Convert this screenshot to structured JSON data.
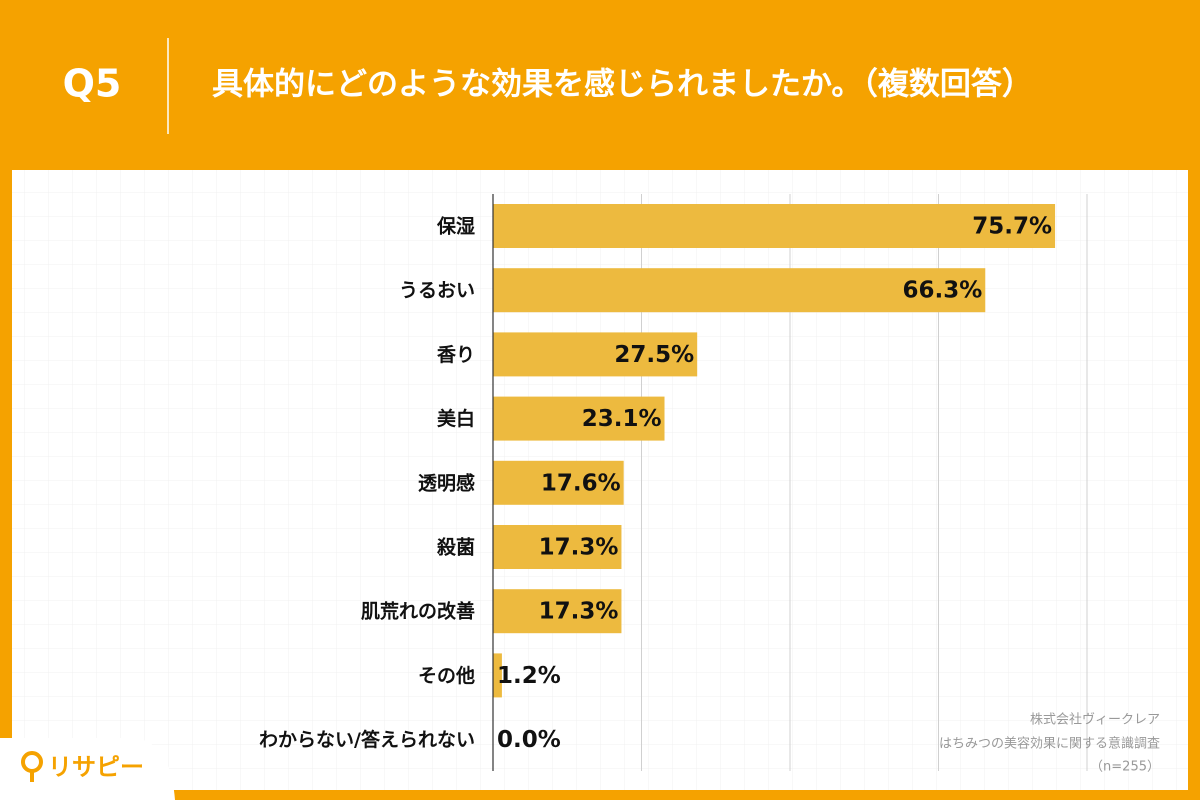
{
  "header": {
    "question": "Q5",
    "title": "具体的にどのような効果を感じられましたか。（複数回答）"
  },
  "chart_data": {
    "type": "bar",
    "orientation": "horizontal",
    "categories": [
      "保湿",
      "うるおい",
      "香り",
      "美白",
      "透明感",
      "殺菌",
      "肌荒れの改善",
      "その他",
      "わからない/答えられない"
    ],
    "values": [
      75.7,
      66.3,
      27.5,
      23.1,
      17.6,
      17.3,
      17.3,
      1.2,
      0.0
    ],
    "value_labels": [
      "75.7%",
      "66.3%",
      "27.5%",
      "23.1%",
      "17.6%",
      "17.3%",
      "17.3%",
      "1.2%",
      "0.0%"
    ],
    "color": "#edba3f",
    "xlim": [
      0,
      80
    ],
    "xticks": [
      0,
      20,
      40,
      60,
      80
    ],
    "grid": true
  },
  "source": {
    "company": "株式会社ヴィークレア",
    "survey": "はちみつの美容効果に関する意識調査",
    "sample": "（n=255）"
  },
  "logo": {
    "text": "リサピー"
  }
}
